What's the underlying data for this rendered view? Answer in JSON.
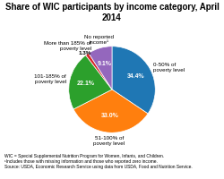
{
  "chart_data": {
    "type": "pie",
    "title": "Share of WIC participants by income category, April 2014",
    "categories": [
      "0-50% of\npoverty level",
      "51-100% of\npoverty level",
      "101-185% of\npoverty level",
      "More than 185% of\npoverty level",
      "No reported\nincome¹"
    ],
    "values": [
      34.4,
      33.0,
      22.1,
      1.3,
      9.1
    ],
    "value_labels": [
      "34.4%",
      "33.0%",
      "22.1%",
      "1.3%",
      "9.1%"
    ],
    "data_labels": true,
    "annotations": [
      "WIC = Special Supplemental Nutrition Program for Women, Infants, and Children.\n¹Includes those with missing information and those who reported zero income.\nSource: USDA, Economic Research Service using data from USDA, Food and Nutrition Service."
    ]
  }
}
